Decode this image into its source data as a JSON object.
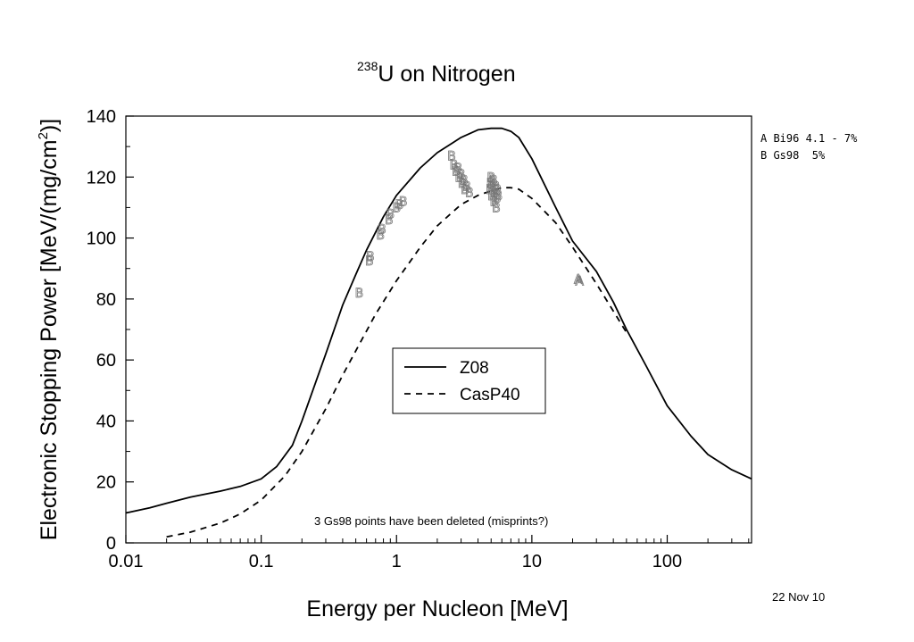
{
  "chart_data": {
    "type": "line",
    "title": {
      "sup": "238",
      "main": "U on Nitrogen"
    },
    "xlabel": "Energy per Nucleon [MeV]",
    "ylabel": "Electronic Stopping Power [MeV/(mg/cm",
    "ylabel_sup": "2",
    "ylabel_end": ")]",
    "xscale": "log",
    "xlim": [
      0.01,
      420
    ],
    "ylim": [
      0,
      140
    ],
    "xticks": [
      0.01,
      0.1,
      1,
      10,
      100
    ],
    "xtick_labels": [
      "0.01",
      "0.1",
      "1",
      "10",
      "100"
    ],
    "yticks": [
      0,
      20,
      40,
      60,
      80,
      100,
      120,
      140
    ],
    "ytick_labels": [
      "0",
      "20",
      "40",
      "60",
      "80",
      "100",
      "120",
      "140"
    ],
    "grid": false,
    "legend_position": "center",
    "series": [
      {
        "name": "Z08",
        "style": "solid",
        "x": [
          0.01,
          0.015,
          0.02,
          0.03,
          0.05,
          0.07,
          0.1,
          0.13,
          0.17,
          0.2,
          0.3,
          0.4,
          0.5,
          0.6,
          0.8,
          1.0,
          1.5,
          2.0,
          3.0,
          4.0,
          5.0,
          6.0,
          7.0,
          8.0,
          10,
          15,
          20,
          30,
          40,
          50,
          70,
          100,
          150,
          200,
          300,
          420
        ],
        "y": [
          9.8,
          11.5,
          13,
          15,
          17,
          18.5,
          21,
          25,
          32,
          40,
          62,
          78,
          88,
          96,
          107,
          114,
          123,
          128,
          133,
          135.5,
          136,
          136,
          135,
          133,
          126,
          110,
          99,
          89,
          79,
          70,
          58,
          45,
          35,
          29,
          24,
          21
        ]
      },
      {
        "name": "CasP40",
        "style": "dashed",
        "x": [
          0.02,
          0.03,
          0.05,
          0.07,
          0.1,
          0.15,
          0.2,
          0.3,
          0.4,
          0.5,
          0.7,
          1.0,
          1.5,
          2.0,
          3.0,
          4.0,
          5.0,
          6.0,
          7.0,
          8.0,
          10,
          15,
          20,
          30,
          40,
          50
        ],
        "y": [
          2,
          3.5,
          6.5,
          9.5,
          14,
          22,
          30,
          44,
          55,
          63,
          75,
          86,
          97,
          104,
          111,
          114,
          115.5,
          116.5,
          116.5,
          116,
          113,
          105,
          97,
          85,
          76,
          69
        ]
      }
    ],
    "points": [
      {
        "label": "A",
        "x": 22,
        "y": 86.5
      },
      {
        "label": "A",
        "x": 22.5,
        "y": 86
      },
      {
        "label": "B",
        "x": 0.53,
        "y": 82
      },
      {
        "label": "B",
        "x": 0.63,
        "y": 92.5
      },
      {
        "label": "B",
        "x": 0.64,
        "y": 94
      },
      {
        "label": "B",
        "x": 0.76,
        "y": 101
      },
      {
        "label": "B",
        "x": 0.78,
        "y": 103
      },
      {
        "label": "B",
        "x": 0.88,
        "y": 106
      },
      {
        "label": "B",
        "x": 0.9,
        "y": 108
      },
      {
        "label": "B",
        "x": 1.0,
        "y": 110
      },
      {
        "label": "B",
        "x": 1.05,
        "y": 111
      },
      {
        "label": "B",
        "x": 1.12,
        "y": 112
      },
      {
        "label": "B",
        "x": 2.55,
        "y": 127
      },
      {
        "label": "B",
        "x": 2.65,
        "y": 124
      },
      {
        "label": "B",
        "x": 2.75,
        "y": 122
      },
      {
        "label": "B",
        "x": 2.85,
        "y": 123
      },
      {
        "label": "B",
        "x": 2.9,
        "y": 120
      },
      {
        "label": "B",
        "x": 3.0,
        "y": 121
      },
      {
        "label": "B",
        "x": 3.05,
        "y": 118
      },
      {
        "label": "B",
        "x": 3.15,
        "y": 119
      },
      {
        "label": "B",
        "x": 3.2,
        "y": 116
      },
      {
        "label": "B",
        "x": 3.3,
        "y": 117
      },
      {
        "label": "B",
        "x": 3.45,
        "y": 115
      },
      {
        "label": "B",
        "x": 4.9,
        "y": 116
      },
      {
        "label": "B",
        "x": 4.95,
        "y": 118
      },
      {
        "label": "B",
        "x": 5.0,
        "y": 120
      },
      {
        "label": "B",
        "x": 5.05,
        "y": 114
      },
      {
        "label": "B",
        "x": 5.1,
        "y": 117
      },
      {
        "label": "B",
        "x": 5.2,
        "y": 119
      },
      {
        "label": "B",
        "x": 5.25,
        "y": 112
      },
      {
        "label": "B",
        "x": 5.3,
        "y": 115
      },
      {
        "label": "B",
        "x": 5.4,
        "y": 117
      },
      {
        "label": "B",
        "x": 5.45,
        "y": 110
      },
      {
        "label": "B",
        "x": 5.5,
        "y": 113
      },
      {
        "label": "B",
        "x": 5.55,
        "y": 116
      },
      {
        "label": "B",
        "x": 5.65,
        "y": 114
      }
    ],
    "reference_legend": [
      "A Bi96 4.1 - 7%",
      "B Gs98  5%"
    ],
    "annotation": "3 Gs98 points have been deleted (misprints?)",
    "date": "22 Nov 10"
  }
}
